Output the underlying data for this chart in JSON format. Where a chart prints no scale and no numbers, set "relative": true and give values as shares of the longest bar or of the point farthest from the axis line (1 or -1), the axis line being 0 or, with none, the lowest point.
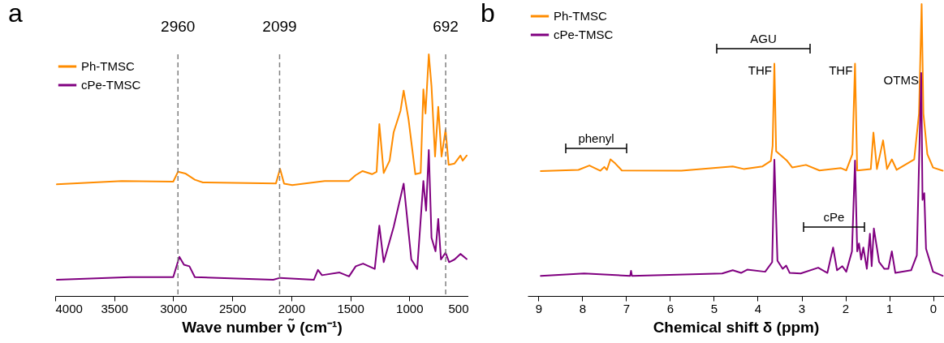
{
  "chart_data": [
    {
      "type": "line",
      "relative": true,
      "xlabel": "Wave number ν̃ (cm⁻¹)",
      "xlim": [
        4000,
        500
      ],
      "xticks": [
        4000,
        3500,
        3000,
        2500,
        2000,
        1500,
        1000,
        500
      ],
      "legend": "top left",
      "line_style": "solid",
      "annotations": [
        "a"
      ],
      "ref_lines": [
        {
          "axis": "x",
          "value": 2960,
          "label": "2960",
          "color": "#808080",
          "line_style": "dashed"
        },
        {
          "axis": "x",
          "value": 2099,
          "label": "2099",
          "color": "#808080",
          "line_style": "dashed"
        },
        {
          "axis": "x",
          "value": 692,
          "label": "692",
          "color": "#808080",
          "line_style": "dashed"
        }
      ],
      "series": [
        {
          "name": "Ph-TMSC",
          "color": "#ff8c00",
          "x": [
            3986,
            3436,
            3000,
            2960,
            2898,
            2817,
            2749,
            2130,
            2095,
            2061,
            1992,
            1717,
            1511,
            1454,
            1396,
            1316,
            1277,
            1254,
            1217,
            1167,
            1133,
            1075,
            1048,
            1007,
            949,
            904,
            881,
            863,
            835,
            812,
            782,
            755,
            727,
            693,
            667,
            617,
            567,
            548,
            514
          ],
          "values": [
            0.462,
            0.476,
            0.473,
            0.514,
            0.507,
            0.481,
            0.47,
            0.466,
            0.526,
            0.465,
            0.459,
            0.476,
            0.476,
            0.5,
            0.517,
            0.504,
            0.514,
            0.711,
            0.509,
            0.56,
            0.677,
            0.766,
            0.85,
            0.732,
            0.504,
            0.509,
            0.855,
            0.755,
            1.0,
            0.867,
            0.577,
            0.783,
            0.577,
            0.688,
            0.543,
            0.548,
            0.581,
            0.56,
            0.581
          ]
        },
        {
          "name": "cPe-TMSC",
          "color": "#800080",
          "x": [
            3986,
            3367,
            3000,
            2948,
            2909,
            2863,
            2817,
            2153,
            2095,
            1809,
            1774,
            1740,
            1591,
            1511,
            1454,
            1392,
            1293,
            1254,
            1217,
            1133,
            1048,
            983,
            933,
            881,
            858,
            835,
            812,
            778,
            755,
            732,
            693,
            663,
            617,
            567,
            514
          ],
          "values": [
            0.067,
            0.078,
            0.078,
            0.162,
            0.129,
            0.123,
            0.078,
            0.067,
            0.075,
            0.067,
            0.108,
            0.086,
            0.097,
            0.081,
            0.123,
            0.134,
            0.112,
            0.291,
            0.14,
            0.285,
            0.465,
            0.151,
            0.112,
            0.476,
            0.353,
            0.604,
            0.241,
            0.185,
            0.319,
            0.151,
            0.179,
            0.14,
            0.151,
            0.174,
            0.153
          ]
        }
      ]
    },
    {
      "type": "line",
      "relative": true,
      "xlabel": "Chemical shift δ (ppm)",
      "xlim": [
        9.25,
        -0.25
      ],
      "xticks": [
        9,
        8,
        7,
        6,
        5,
        4,
        3,
        2,
        1,
        0
      ],
      "legend": "top left",
      "line_style": "solid",
      "annotations": [
        "b",
        "phenyl",
        "AGU",
        "cPe",
        {
          "text": "THF",
          "x": 3.62,
          "y": 0.796
        },
        {
          "text": "THF",
          "x": 1.78,
          "y": 0.796
        },
        {
          "text": "OTMS",
          "x": 0.27,
          "y": 0.764
        }
      ],
      "series": [
        {
          "name": "Ph-TMSC",
          "color": "#ff8c00",
          "x": [
            8.95,
            8.09,
            7.84,
            7.59,
            7.5,
            7.44,
            7.36,
            7.25,
            7.1,
            5.74,
            4.57,
            4.32,
            3.89,
            3.7,
            3.66,
            3.62,
            3.58,
            3.33,
            3.21,
            2.9,
            2.59,
            2.1,
            1.98,
            1.84,
            1.78,
            1.73,
            1.42,
            1.36,
            1.28,
            1.14,
            1.05,
            0.94,
            0.83,
            0.43,
            0.32,
            0.26,
            0.22,
            0.13,
            0.0,
            -0.22
          ],
          "values": [
            0.428,
            0.432,
            0.447,
            0.429,
            0.442,
            0.432,
            0.468,
            0.454,
            0.43,
            0.429,
            0.444,
            0.435,
            0.444,
            0.463,
            0.514,
            0.796,
            0.496,
            0.463,
            0.44,
            0.449,
            0.43,
            0.438,
            0.43,
            0.486,
            0.796,
            0.43,
            0.435,
            0.56,
            0.435,
            0.533,
            0.435,
            0.468,
            0.432,
            0.468,
            0.625,
            1.0,
            0.625,
            0.486,
            0.44,
            0.429
          ]
        },
        {
          "name": "cPe-TMSC",
          "color": "#800080",
          "x": [
            8.95,
            7.96,
            6.91,
            6.89,
            6.87,
            4.81,
            4.57,
            4.38,
            4.24,
            3.83,
            3.67,
            3.62,
            3.55,
            3.43,
            3.35,
            3.27,
            3.02,
            2.62,
            2.41,
            2.28,
            2.19,
            2.07,
            1.98,
            1.85,
            1.78,
            1.73,
            1.69,
            1.64,
            1.59,
            1.51,
            1.44,
            1.4,
            1.35,
            1.23,
            1.11,
            1.02,
            0.94,
            0.86,
            0.5,
            0.37,
            0.27,
            0.24,
            0.2,
            0.16,
            0.0,
            -0.22
          ],
          "values": [
            0.069,
            0.077,
            0.069,
            0.086,
            0.069,
            0.077,
            0.088,
            0.079,
            0.09,
            0.083,
            0.116,
            0.467,
            0.121,
            0.093,
            0.104,
            0.079,
            0.077,
            0.097,
            0.079,
            0.166,
            0.088,
            0.102,
            0.083,
            0.153,
            0.464,
            0.153,
            0.18,
            0.125,
            0.166,
            0.093,
            0.213,
            0.102,
            0.231,
            0.116,
            0.093,
            0.093,
            0.153,
            0.079,
            0.088,
            0.139,
            0.764,
            0.329,
            0.352,
            0.162,
            0.083,
            0.069
          ]
        }
      ]
    }
  ]
}
